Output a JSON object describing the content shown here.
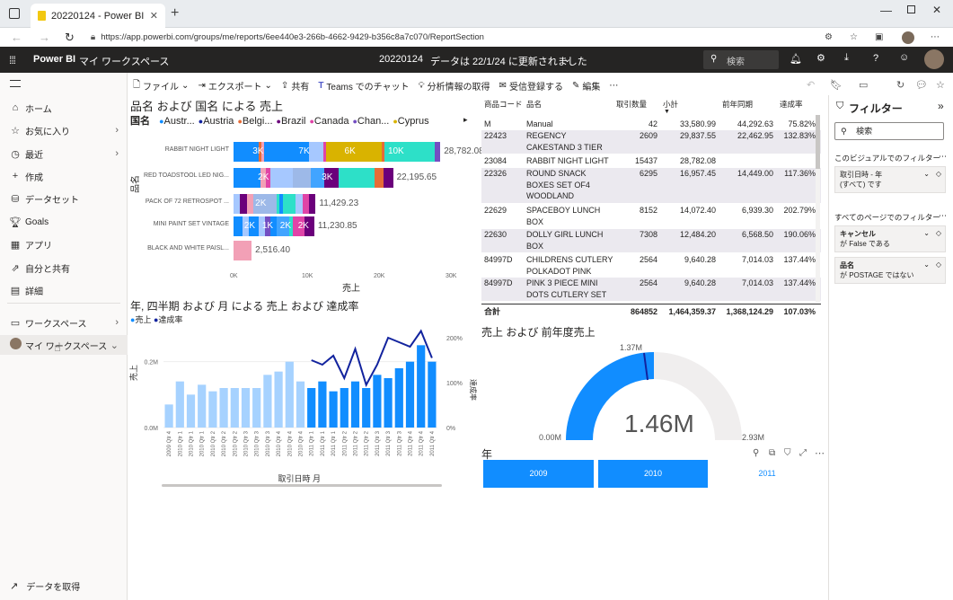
{
  "browser": {
    "tab_title": "20220124 - Power BI",
    "url": "https://app.powerbi.com/groups/me/reports/6ee440e3-266b-4662-9429-b356c8a7c070/ReportSection"
  },
  "topbar": {
    "app": "Power BI",
    "workspace": "マイ ワークスペース",
    "report_title": "20220124",
    "updated": "データは 22/1/24 に更新されました",
    "search_placeholder": "検索"
  },
  "sidebar": {
    "items": [
      {
        "label": "ホーム",
        "icon": "home-icon"
      },
      {
        "label": "お気に入り",
        "icon": "star-icon"
      },
      {
        "label": "最近",
        "icon": "clock-icon"
      },
      {
        "label": "作成",
        "icon": "plus-icon"
      },
      {
        "label": "データセット",
        "icon": "database-icon"
      },
      {
        "label": "Goals",
        "icon": "trophy-icon"
      },
      {
        "label": "アプリ",
        "icon": "apps-icon"
      },
      {
        "label": "自分と共有",
        "icon": "share-icon"
      },
      {
        "label": "詳細",
        "icon": "book-icon"
      },
      {
        "label": "ワークスペース",
        "icon": "workspace-icon"
      },
      {
        "label": "マイ ワークスペース",
        "icon": "avatar-icon"
      }
    ],
    "get_data": "データを取得"
  },
  "toolbar": {
    "file": "ファイル",
    "export": "エクスポート",
    "share": "共有",
    "teams": "Teams でのチャット",
    "insights": "分析情報の取得",
    "subscribe": "受信登録する",
    "edit": "編集"
  },
  "stacked_bar": {
    "title": "品名 および 国名 による 売上",
    "legend_label": "国名",
    "legend": [
      {
        "name": "Austr...",
        "color": "#118dff"
      },
      {
        "name": "Austria",
        "color": "#12239e"
      },
      {
        "name": "Belgi...",
        "color": "#e66c37"
      },
      {
        "name": "Brazil",
        "color": "#6b007b"
      },
      {
        "name": "Canada",
        "color": "#e044a7"
      },
      {
        "name": "Chan...",
        "color": "#744ec2"
      },
      {
        "name": "Cyprus",
        "color": "#d9b300"
      }
    ],
    "ylabel": "品名",
    "xlabel": "売上",
    "xticks": [
      "0K",
      "10K",
      "20K",
      "30K"
    ],
    "rows": [
      {
        "name": "RABBIT NIGHT LIGHT",
        "total": "28,782.08",
        "labels": [
          "3K",
          "7K",
          "6K",
          "10K"
        ]
      },
      {
        "name": "RED TOADSTOOL LED NIG...",
        "total": "22,195.65",
        "labels": [
          "2K",
          "3K"
        ]
      },
      {
        "name": "PACK OF 72 RETROSPOT ...",
        "total": "11,429.23",
        "labels": [
          "2K"
        ]
      },
      {
        "name": "MINI PAINT SET VINTAGE",
        "total": "11,230.85",
        "labels": [
          "2K",
          "1K",
          "2K",
          "2K"
        ]
      },
      {
        "name": "BLACK AND WHITE PAISL...",
        "total": "2,516.40",
        "labels": []
      }
    ]
  },
  "combo": {
    "title": "年, 四半期 および 月 による 売上 および 達成率",
    "legend": [
      {
        "name": "売上",
        "color": "#118dff"
      },
      {
        "name": "達成率",
        "color": "#12239e"
      }
    ],
    "ylabel": "売上",
    "y2label": "達成率",
    "xlabel": "取引日時 月",
    "yticks": [
      "0.2M",
      "0.0M"
    ],
    "y2ticks": [
      "200%",
      "100%",
      "0%"
    ],
    "xticks": [
      "2009 Qtr 4",
      "2010 Qtr 1",
      "2010 Qtr 1",
      "2010 Qtr 1",
      "2010 Qtr 2",
      "2010 Qtr 2",
      "2010 Qtr 2",
      "2010 Qtr 3",
      "2010 Qtr 3",
      "2010 Qtr 3",
      "2010 Qtr 4",
      "2010 Qtr 4",
      "2010 Qtr 4",
      "2011 Qtr 1",
      "2011 Qtr 1",
      "2011 Qtr 1",
      "2011 Qtr 2",
      "2011 Qtr 2",
      "2011 Qtr 2",
      "2011 Qtr 3",
      "2011 Qtr 3",
      "2011 Qtr 3",
      "2011 Qtr 4",
      "2011 Qtr 4",
      "2011 Qtr 4"
    ]
  },
  "table": {
    "columns": [
      "商品コード",
      "品名",
      "取引数量",
      "小計",
      "前年同期",
      "達成率"
    ],
    "rows": [
      {
        "code": "M",
        "name": [
          "Manual"
        ],
        "qty": "42",
        "sub": "33,580.99",
        "prev": "44,292.63",
        "rate": "75.82%"
      },
      {
        "code": "22423",
        "name": [
          "REGENCY",
          "CAKESTAND 3 TIER"
        ],
        "qty": "2609",
        "sub": "29,837.55",
        "prev": "22,462.95",
        "rate": "132.83%"
      },
      {
        "code": "23084",
        "name": [
          "RABBIT NIGHT LIGHT"
        ],
        "qty": "15437",
        "sub": "28,782.08",
        "prev": "",
        "rate": ""
      },
      {
        "code": "22326",
        "name": [
          "ROUND SNACK",
          "BOXES SET OF4",
          "WOODLAND"
        ],
        "qty": "6295",
        "sub": "16,957.45",
        "prev": "14,449.00",
        "rate": "117.36%"
      },
      {
        "code": "22629",
        "name": [
          "SPACEBOY LUNCH",
          "BOX"
        ],
        "qty": "8152",
        "sub": "14,072.40",
        "prev": "6,939.30",
        "rate": "202.79%"
      },
      {
        "code": "22630",
        "name": [
          "DOLLY GIRL LUNCH",
          "BOX"
        ],
        "qty": "7308",
        "sub": "12,484.20",
        "prev": "6,568.50",
        "rate": "190.06%"
      },
      {
        "code": "84997D",
        "name": [
          "CHILDRENS CUTLERY",
          "POLKADOT PINK"
        ],
        "qty": "2564",
        "sub": "9,640.28",
        "prev": "7,014.03",
        "rate": "137.44%"
      },
      {
        "code": "84997D",
        "name": [
          "PINK 3 PIECE MINI",
          "DOTS CUTLERY SET"
        ],
        "qty": "2564",
        "sub": "9,640.28",
        "prev": "7,014.03",
        "rate": "137.44%"
      }
    ],
    "total": {
      "label": "合計",
      "qty": "864852",
      "sub": "1,464,359.37",
      "prev": "1,368,124.29",
      "rate": "107.03%"
    }
  },
  "gauge": {
    "title": "売上 および 前年度売上",
    "value_label": "1.46M",
    "min": "0.00M",
    "max": "2.93M",
    "target": "1.37M"
  },
  "slicer": {
    "title": "年",
    "items": [
      "2009",
      "2010",
      "2011"
    ]
  },
  "filters": {
    "title": "フィルター",
    "search": "検索",
    "visual_section": "このビジュアルでのフィルター",
    "card1": {
      "name": "取引日時 - 年",
      "value": "(すべて) です"
    },
    "page_section": "すべてのページでのフィルター",
    "card2": {
      "name": "キャンセル",
      "value": "が False である"
    },
    "card3": {
      "name": "品名",
      "value": "が POSTAGE ではない"
    }
  },
  "chart_data": [
    {
      "type": "bar",
      "title": "品名 および 国名 による 売上",
      "categories": [
        "RABBIT NIGHT LIGHT",
        "RED TOADSTOOL LED NIG...",
        "PACK OF 72 RETROSPOT ...",
        "MINI PAINT SET VINTAGE",
        "BLACK AND WHITE PAISL..."
      ],
      "values": [
        28782.08,
        22195.65,
        11429.23,
        11230.85,
        2516.4
      ],
      "xlabel": "売上",
      "ylabel": "品名",
      "xlim": [
        0,
        30000
      ]
    },
    {
      "type": "bar",
      "title": "年, 四半期 および 月 による 売上 および 達成率",
      "categories": [
        "2009 Qtr 4",
        "2010 Qtr 1",
        "2010 Qtr 1",
        "2010 Qtr 1",
        "2010 Qtr 2",
        "2010 Qtr 2",
        "2010 Qtr 2",
        "2010 Qtr 3",
        "2010 Qtr 3",
        "2010 Qtr 3",
        "2010 Qtr 4",
        "2010 Qtr 4",
        "2010 Qtr 4",
        "2011 Qtr 1",
        "2011 Qtr 1",
        "2011 Qtr 1",
        "2011 Qtr 2",
        "2011 Qtr 2",
        "2011 Qtr 2",
        "2011 Qtr 3",
        "2011 Qtr 3",
        "2011 Qtr 3",
        "2011 Qtr 4",
        "2011 Qtr 4",
        "2011 Qtr 4"
      ],
      "series": [
        {
          "name": "売上",
          "values": [
            0.07,
            0.14,
            0.1,
            0.13,
            0.11,
            0.12,
            0.12,
            0.12,
            0.12,
            0.16,
            0.17,
            0.2,
            0.14,
            0.12,
            0.14,
            0.11,
            0.12,
            0.14,
            0.12,
            0.16,
            0.15,
            0.18,
            0.2,
            0.25,
            0.2
          ]
        },
        {
          "name": "達成率",
          "values": [
            null,
            null,
            null,
            null,
            null,
            null,
            null,
            null,
            null,
            null,
            null,
            null,
            null,
            150,
            140,
            160,
            110,
            175,
            95,
            140,
            200,
            190,
            180,
            215,
            155
          ]
        }
      ],
      "xlabel": "取引日時 月",
      "ylabel": "売上"
    }
  ]
}
